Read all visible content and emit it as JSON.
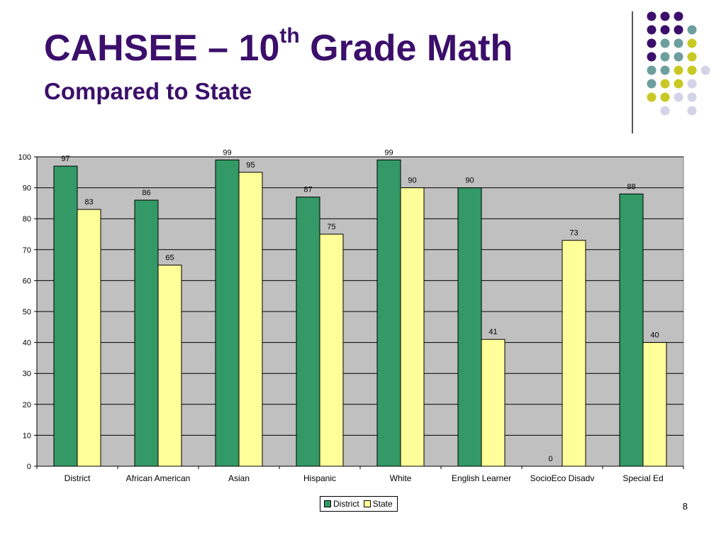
{
  "slide": {
    "title_main": "CAHSEE – 10",
    "title_sup": "th",
    "title_rest": " Grade Math",
    "subtitle": "Compared to State",
    "page_number": "8"
  },
  "colors": {
    "title": "#3b0f6b",
    "district": "#339966",
    "state": "#ffff99",
    "plot_bg": "#c0c0c0",
    "dot_purple": "#3b0f6b",
    "dot_teal": "#6d9e9e",
    "dot_yellow": "#c9c925",
    "dot_lavender": "#d4d4e8"
  },
  "decoration": {
    "dot_grid": [
      [
        "purple",
        "purple",
        "purple",
        "",
        ""
      ],
      [
        "purple",
        "purple",
        "purple",
        "teal",
        ""
      ],
      [
        "purple",
        "teal",
        "teal",
        "yellow",
        ""
      ],
      [
        "purple",
        "teal",
        "teal",
        "yellow",
        ""
      ],
      [
        "teal",
        "teal",
        "yellow",
        "yellow",
        "lavender"
      ],
      [
        "teal",
        "yellow",
        "yellow",
        "lavender",
        ""
      ],
      [
        "yellow",
        "yellow",
        "lavender",
        "lavender",
        ""
      ],
      [
        "",
        "lavender",
        "",
        "lavender",
        ""
      ]
    ]
  },
  "chart_data": {
    "type": "bar",
    "title": "",
    "xlabel": "",
    "ylabel": "",
    "ylim": [
      0,
      100
    ],
    "yticks": [
      0,
      10,
      20,
      30,
      40,
      50,
      60,
      70,
      80,
      90,
      100
    ],
    "grid": true,
    "legend": "bottom",
    "categories": [
      "District",
      "African American",
      "Asian",
      "Hispanic",
      "White",
      "English Learner",
      "SocioEco Disadv",
      "Special Ed"
    ],
    "series": [
      {
        "name": "District",
        "values": [
          97,
          86,
          99,
          87,
          99,
          90,
          0,
          88
        ]
      },
      {
        "name": "State",
        "values": [
          83,
          65,
          95,
          75,
          90,
          41,
          73,
          40
        ]
      }
    ]
  }
}
